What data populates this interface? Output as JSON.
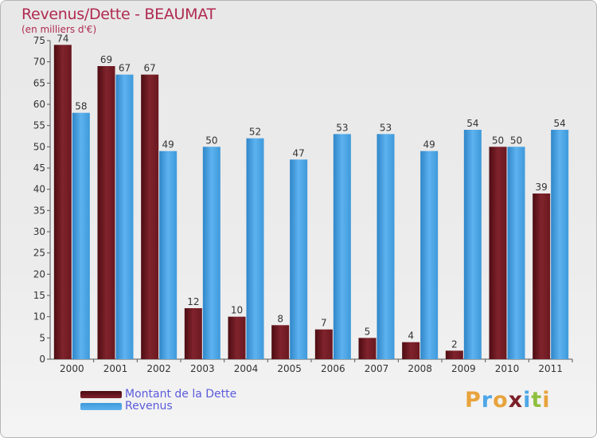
{
  "chart_data": {
    "type": "bar",
    "title": "Revenus/Dette - BEAUMAT",
    "subtitle": "(en milliers d'€)",
    "categories": [
      "2000",
      "2001",
      "2002",
      "2003",
      "2004",
      "2005",
      "2006",
      "2007",
      "2008",
      "2009",
      "2010",
      "2011"
    ],
    "series": [
      {
        "name": "Montant de la Dette",
        "color": "#7a1f28",
        "values": [
          74,
          69,
          67,
          12,
          10,
          8,
          7,
          5,
          4,
          2,
          50,
          39
        ]
      },
      {
        "name": "Revenus",
        "color": "#4ea6e6",
        "values": [
          58,
          67,
          49,
          50,
          52,
          47,
          53,
          53,
          49,
          54,
          50,
          54
        ]
      }
    ],
    "ylim": [
      0,
      75
    ],
    "yticks": [
      0,
      5,
      10,
      15,
      20,
      25,
      30,
      35,
      40,
      45,
      50,
      55,
      60,
      65,
      70,
      75
    ],
    "grid": false,
    "legend_position": "bottom-left"
  },
  "logo": {
    "text": "Proxiti",
    "letters": [
      "P",
      "r",
      "o",
      "x",
      "i",
      "t",
      "i"
    ],
    "colors": [
      "#e8a33c",
      "#4ea6e6",
      "#e8a33c",
      "#7a1f28",
      "#4ea6e6",
      "#8fbf3f",
      "#e8a33c"
    ]
  }
}
